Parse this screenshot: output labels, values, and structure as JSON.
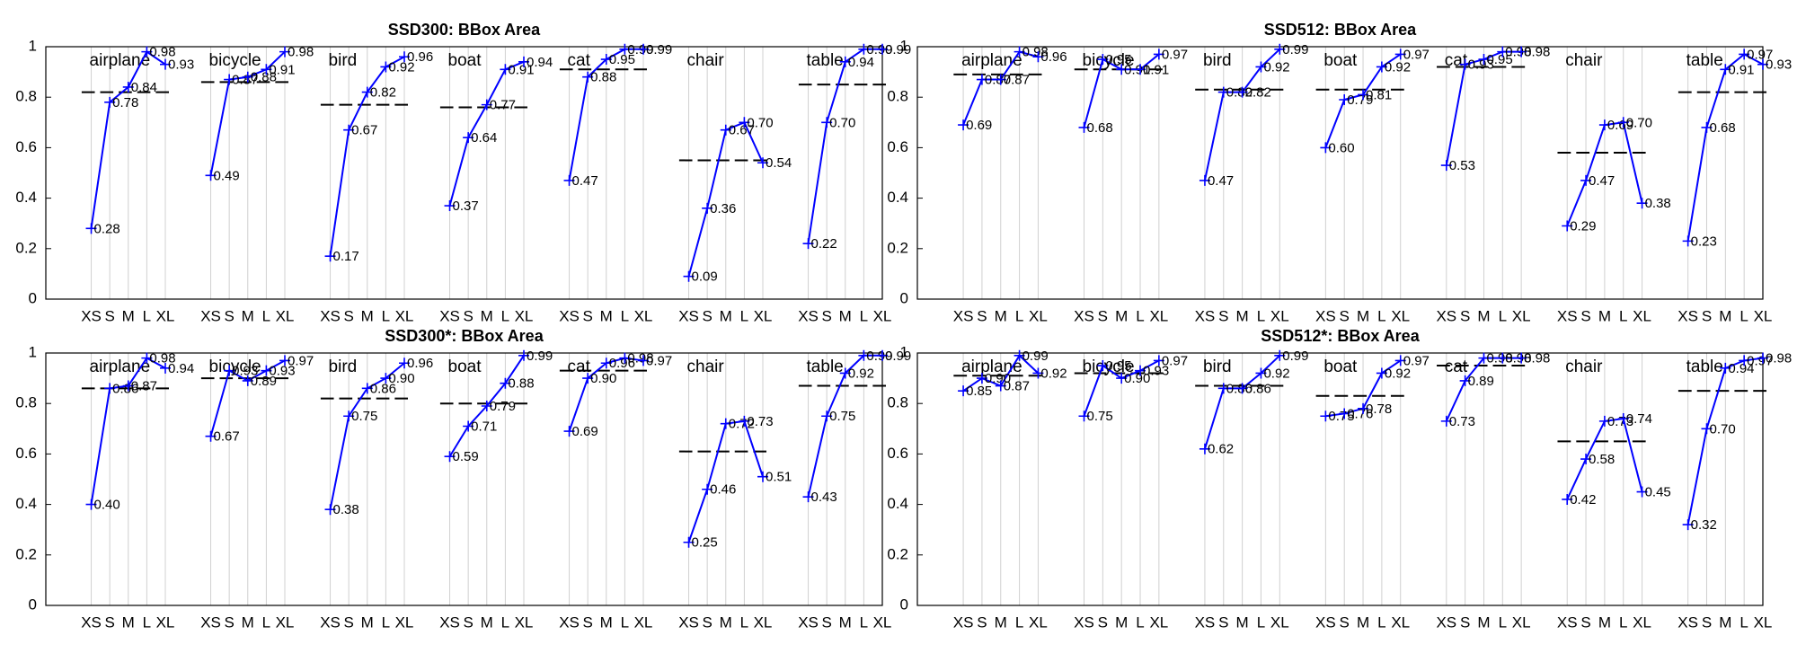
{
  "chart_data": [
    {
      "type": "grouped-line",
      "title": "SSD300: BBox Area",
      "categories": [
        "XS",
        "S",
        "M",
        "L",
        "XL"
      ],
      "color": "#0000ff",
      "ylim": [
        0,
        1
      ],
      "yticks": [
        0,
        0.2,
        0.4,
        0.6,
        0.8,
        1
      ],
      "groups": [
        {
          "name": "airplane",
          "values": [
            0.28,
            0.78,
            0.84,
            0.98,
            0.93
          ],
          "value_labels": [
            "0.28",
            "0.78",
            "0.84",
            "0.98",
            "0.93"
          ],
          "average": 0.82
        },
        {
          "name": "bicycle",
          "values": [
            0.49,
            0.87,
            0.88,
            0.91,
            0.98
          ],
          "value_labels": [
            "0.49",
            "0.87",
            "0.88",
            "0.91",
            "0.98"
          ],
          "average": 0.86
        },
        {
          "name": "bird",
          "values": [
            0.17,
            0.67,
            0.82,
            0.92,
            0.96
          ],
          "value_labels": [
            "0.17",
            "0.67",
            "0.82",
            "0.92",
            "0.96"
          ],
          "average": 0.77
        },
        {
          "name": "boat",
          "values": [
            0.37,
            0.64,
            0.77,
            0.91,
            0.94
          ],
          "value_labels": [
            "0.37",
            "0.64",
            "0.77",
            "0.91",
            "0.94"
          ],
          "average": 0.76
        },
        {
          "name": "cat",
          "values": [
            0.47,
            0.88,
            0.95,
            0.99,
            0.99
          ],
          "value_labels": [
            "0.47",
            "0.88",
            "0.95",
            "0.99",
            "0.99"
          ],
          "average": 0.91
        },
        {
          "name": "chair",
          "values": [
            0.09,
            0.36,
            0.67,
            0.7,
            0.54
          ],
          "value_labels": [
            "0.09",
            "0.36",
            "0.67",
            "0.70",
            "0.54"
          ],
          "average": 0.55
        },
        {
          "name": "table",
          "values": [
            0.22,
            0.7,
            0.94,
            0.99,
            0.99
          ],
          "value_labels": [
            "0.22",
            "0.70",
            "0.94",
            "0.99",
            "0.99"
          ],
          "average": 0.85
        }
      ]
    },
    {
      "type": "grouped-line",
      "title": "SSD512: BBox Area",
      "categories": [
        "XS",
        "S",
        "M",
        "L",
        "XL"
      ],
      "color": "#0000ff",
      "ylim": [
        0,
        1
      ],
      "yticks": [
        0,
        0.2,
        0.4,
        0.6,
        0.8,
        1
      ],
      "groups": [
        {
          "name": "airplane",
          "values": [
            0.69,
            0.87,
            0.87,
            0.98,
            0.96
          ],
          "value_labels": [
            "0.69",
            "0.87",
            "0.87",
            "0.98",
            "0.96"
          ],
          "average": 0.89
        },
        {
          "name": "bicycle",
          "values": [
            0.68,
            0.95,
            0.91,
            0.91,
            0.97
          ],
          "value_labels": [
            "0.68",
            "0.95",
            "0.91",
            "0.91",
            "0.97"
          ],
          "average": 0.91
        },
        {
          "name": "bird",
          "values": [
            0.47,
            0.82,
            0.82,
            0.92,
            0.99
          ],
          "value_labels": [
            "0.47",
            "0.82",
            "0.82",
            "0.92",
            "0.99"
          ],
          "average": 0.83
        },
        {
          "name": "boat",
          "values": [
            0.6,
            0.79,
            0.81,
            0.92,
            0.97
          ],
          "value_labels": [
            "0.60",
            "0.79",
            "0.81",
            "0.92",
            "0.97"
          ],
          "average": 0.83
        },
        {
          "name": "cat",
          "values": [
            0.53,
            0.93,
            0.95,
            0.98,
            0.98
          ],
          "value_labels": [
            "0.53",
            "0.93",
            "0.95",
            "0.98",
            "0.98"
          ],
          "average": 0.92
        },
        {
          "name": "chair",
          "values": [
            0.29,
            0.47,
            0.69,
            0.7,
            0.38
          ],
          "value_labels": [
            "0.29",
            "0.47",
            "0.69",
            "0.70",
            "0.38"
          ],
          "average": 0.58
        },
        {
          "name": "table",
          "values": [
            0.23,
            0.68,
            0.91,
            0.97,
            0.93
          ],
          "value_labels": [
            "0.23",
            "0.68",
            "0.91",
            "0.97",
            "0.93"
          ],
          "average": 0.82
        }
      ]
    },
    {
      "type": "grouped-line",
      "title": "SSD300*: BBox Area",
      "categories": [
        "XS",
        "S",
        "M",
        "L",
        "XL"
      ],
      "color": "#0000ff",
      "ylim": [
        0,
        1
      ],
      "yticks": [
        0,
        0.2,
        0.4,
        0.6,
        0.8,
        1
      ],
      "groups": [
        {
          "name": "airplane",
          "values": [
            0.4,
            0.86,
            0.87,
            0.98,
            0.94
          ],
          "value_labels": [
            "0.40",
            "0.86",
            "0.87",
            "0.98",
            "0.94"
          ],
          "average": 0.86
        },
        {
          "name": "bicycle",
          "values": [
            0.67,
            0.93,
            0.89,
            0.93,
            0.97
          ],
          "value_labels": [
            "0.67",
            "0.93",
            "0.89",
            "0.93",
            "0.97"
          ],
          "average": 0.9
        },
        {
          "name": "bird",
          "values": [
            0.38,
            0.75,
            0.86,
            0.9,
            0.96
          ],
          "value_labels": [
            "0.38",
            "0.75",
            "0.86",
            "0.90",
            "0.96"
          ],
          "average": 0.82
        },
        {
          "name": "boat",
          "values": [
            0.59,
            0.71,
            0.79,
            0.88,
            0.99
          ],
          "value_labels": [
            "0.59",
            "0.71",
            "0.79",
            "0.88",
            "0.99"
          ],
          "average": 0.8
        },
        {
          "name": "cat",
          "values": [
            0.69,
            0.9,
            0.96,
            0.98,
            0.97
          ],
          "value_labels": [
            "0.69",
            "0.90",
            "0.96",
            "0.98",
            "0.97"
          ],
          "average": 0.93
        },
        {
          "name": "chair",
          "values": [
            0.25,
            0.46,
            0.72,
            0.73,
            0.51
          ],
          "value_labels": [
            "0.25",
            "0.46",
            "0.72",
            "0.73",
            "0.51"
          ],
          "average": 0.61
        },
        {
          "name": "table",
          "values": [
            0.43,
            0.75,
            0.92,
            0.99,
            0.99
          ],
          "value_labels": [
            "0.43",
            "0.75",
            "0.92",
            "0.99",
            "0.99"
          ],
          "average": 0.87
        }
      ]
    },
    {
      "type": "grouped-line",
      "title": "SSD512*: BBox Area",
      "categories": [
        "XS",
        "S",
        "M",
        "L",
        "XL"
      ],
      "color": "#0000ff",
      "ylim": [
        0,
        1
      ],
      "yticks": [
        0,
        0.2,
        0.4,
        0.6,
        0.8,
        1
      ],
      "groups": [
        {
          "name": "airplane",
          "values": [
            0.85,
            0.9,
            0.87,
            0.99,
            0.92
          ],
          "value_labels": [
            "0.85",
            "0.90",
            "0.87",
            "0.99",
            "0.92"
          ],
          "average": 0.91
        },
        {
          "name": "bicycle",
          "values": [
            0.75,
            0.95,
            0.9,
            0.93,
            0.97
          ],
          "value_labels": [
            "0.75",
            "0.95",
            "0.90",
            "0.93",
            "0.97"
          ],
          "average": 0.92
        },
        {
          "name": "bird",
          "values": [
            0.62,
            0.86,
            0.86,
            0.92,
            0.99
          ],
          "value_labels": [
            "0.62",
            "0.86",
            "0.86",
            "0.92",
            "0.99"
          ],
          "average": 0.87
        },
        {
          "name": "boat",
          "values": [
            0.75,
            0.76,
            0.78,
            0.92,
            0.97
          ],
          "value_labels": [
            "0.75",
            "0.76",
            "0.78",
            "0.92",
            "0.97"
          ],
          "average": 0.83
        },
        {
          "name": "cat",
          "values": [
            0.73,
            0.89,
            0.98,
            0.98,
            0.98
          ],
          "value_labels": [
            "0.73",
            "0.89",
            "0.98",
            "0.98",
            "0.98"
          ],
          "average": 0.95
        },
        {
          "name": "chair",
          "values": [
            0.42,
            0.58,
            0.73,
            0.74,
            0.45
          ],
          "value_labels": [
            "0.42",
            "0.58",
            "0.73",
            "0.74",
            "0.45"
          ],
          "average": 0.65
        },
        {
          "name": "table",
          "values": [
            0.32,
            0.7,
            0.94,
            0.97,
            0.98
          ],
          "value_labels": [
            "0.32",
            "0.70",
            "0.94",
            "0.97",
            "0.98"
          ],
          "average": 0.85
        }
      ]
    }
  ]
}
